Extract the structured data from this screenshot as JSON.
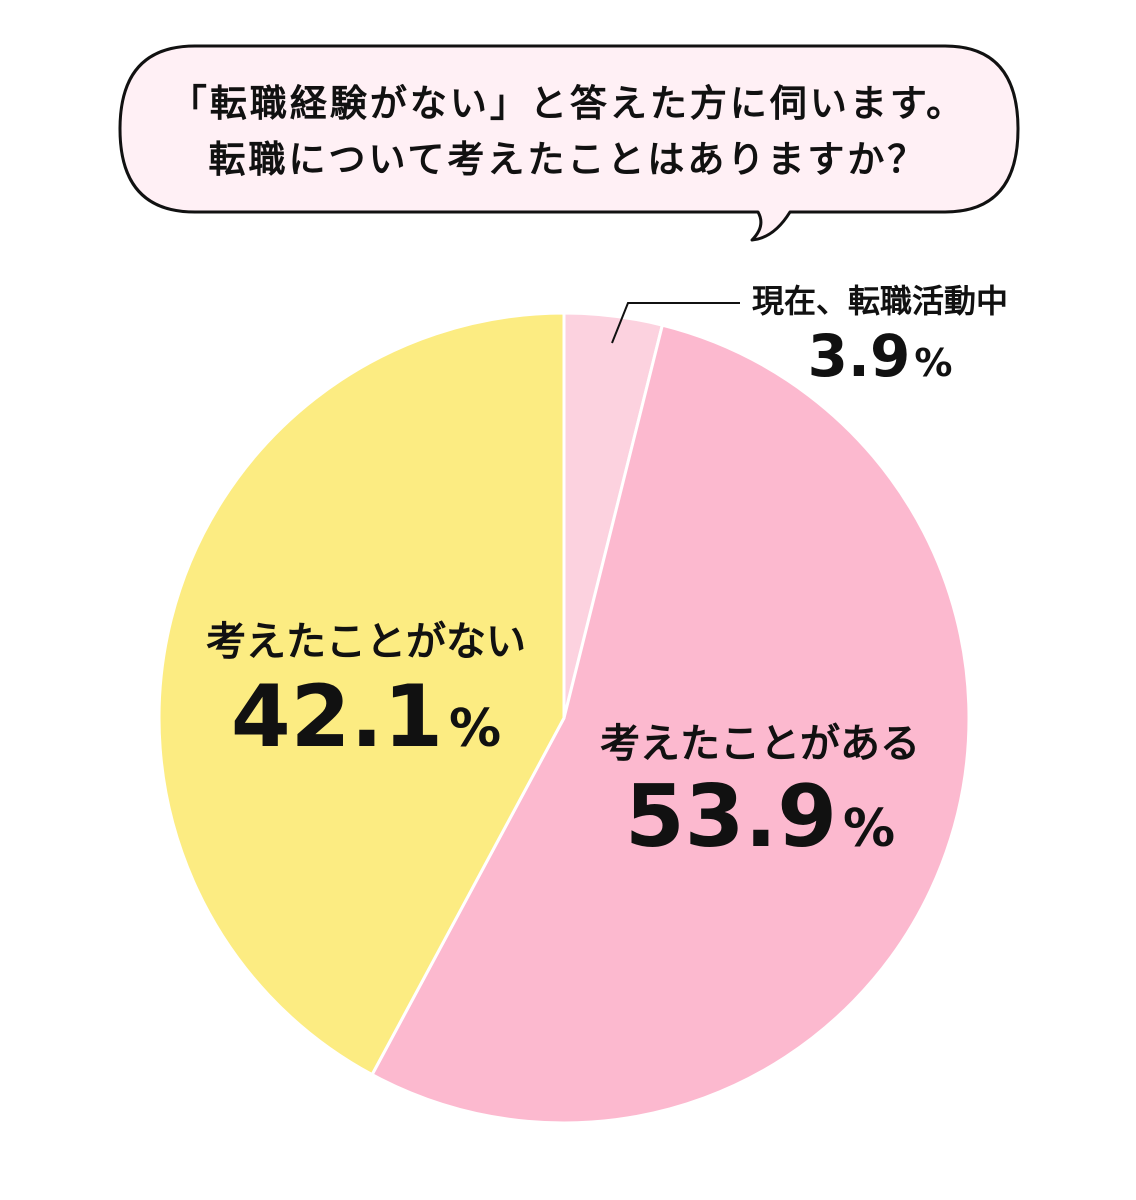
{
  "question": {
    "line1": "「転職経験がない」と答えた方に伺います。",
    "line2": "転職について考えたことはありますか？"
  },
  "chart_data": {
    "type": "pie",
    "start_angle_deg": 0,
    "direction": "clockwise",
    "slices": [
      {
        "label": "現在、転職活動中",
        "value": 3.9,
        "display": "3.9",
        "color": "#fcd2df"
      },
      {
        "label": "考えたことがある",
        "value": 53.9,
        "display": "53.9",
        "color": "#fcb9cf"
      },
      {
        "label": "考えたことがない",
        "value": 42.1,
        "display": "42.1",
        "color": "#fcec82"
      }
    ],
    "unit": "%"
  },
  "colors": {
    "bubble_fill": "#fff0f5",
    "bubble_stroke": "#111111",
    "slice_border": "#ffffff"
  }
}
